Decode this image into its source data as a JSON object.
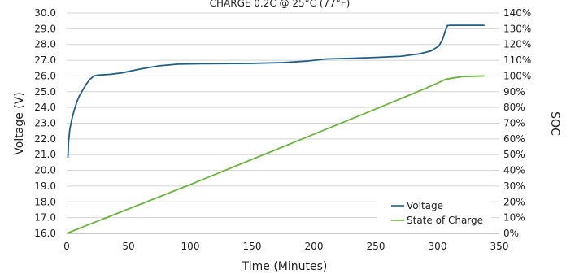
{
  "chart_data": {
    "type": "line",
    "title": "CHARGE 0.2C @ 25°C (77°F)",
    "xlabel": "Time (Minutes)",
    "ylabel": "Voltage (V)",
    "y2label": "SOC",
    "xlim": [
      0,
      350
    ],
    "ylim": [
      16.0,
      30.0
    ],
    "y2lim": [
      0,
      140
    ],
    "xticks": [
      "0",
      "50",
      "100",
      "150",
      "200",
      "250",
      "300",
      "350"
    ],
    "yticks": [
      "16.0",
      "17.0",
      "18.0",
      "19.0",
      "20.0",
      "21.0",
      "22.0",
      "23.0",
      "24.0",
      "25.0",
      "26.0",
      "27.0",
      "28.0",
      "29.0",
      "30.0"
    ],
    "y2ticks": [
      "0%",
      "10%",
      "20%",
      "30%",
      "40%",
      "50%",
      "60%",
      "70%",
      "80%",
      "90%",
      "100%",
      "110%",
      "120%",
      "130%",
      "140%"
    ],
    "grid": true,
    "legend_position": "bottom-right",
    "series": [
      {
        "name": "Voltage",
        "axis": "left",
        "color": "#1f5f86",
        "points": [
          [
            1,
            20.8
          ],
          [
            1.5,
            21.8
          ],
          [
            2.5,
            22.6
          ],
          [
            4,
            23.2
          ],
          [
            6,
            23.8
          ],
          [
            8,
            24.3
          ],
          [
            10,
            24.7
          ],
          [
            13,
            25.1
          ],
          [
            16,
            25.5
          ],
          [
            19,
            25.8
          ],
          [
            22,
            26.0
          ],
          [
            25,
            26.05
          ],
          [
            35,
            26.1
          ],
          [
            45,
            26.2
          ],
          [
            60,
            26.45
          ],
          [
            75,
            26.65
          ],
          [
            90,
            26.75
          ],
          [
            110,
            26.78
          ],
          [
            150,
            26.8
          ],
          [
            175,
            26.85
          ],
          [
            195,
            26.95
          ],
          [
            210,
            27.08
          ],
          [
            230,
            27.12
          ],
          [
            250,
            27.18
          ],
          [
            270,
            27.25
          ],
          [
            285,
            27.4
          ],
          [
            295,
            27.6
          ],
          [
            301,
            27.9
          ],
          [
            304,
            28.3
          ],
          [
            306,
            28.8
          ],
          [
            308,
            29.2
          ],
          [
            310,
            29.22
          ],
          [
            320,
            29.22
          ],
          [
            338,
            29.22
          ]
        ]
      },
      {
        "name": "State of Charge",
        "axis": "right",
        "color": "#6db33f",
        "points": [
          [
            0,
            0
          ],
          [
            50,
            15.5
          ],
          [
            100,
            31
          ],
          [
            150,
            47
          ],
          [
            200,
            63
          ],
          [
            250,
            79
          ],
          [
            290,
            92
          ],
          [
            300,
            95.5
          ],
          [
            307,
            98
          ],
          [
            320,
            99.6
          ],
          [
            338,
            100
          ]
        ]
      }
    ]
  }
}
